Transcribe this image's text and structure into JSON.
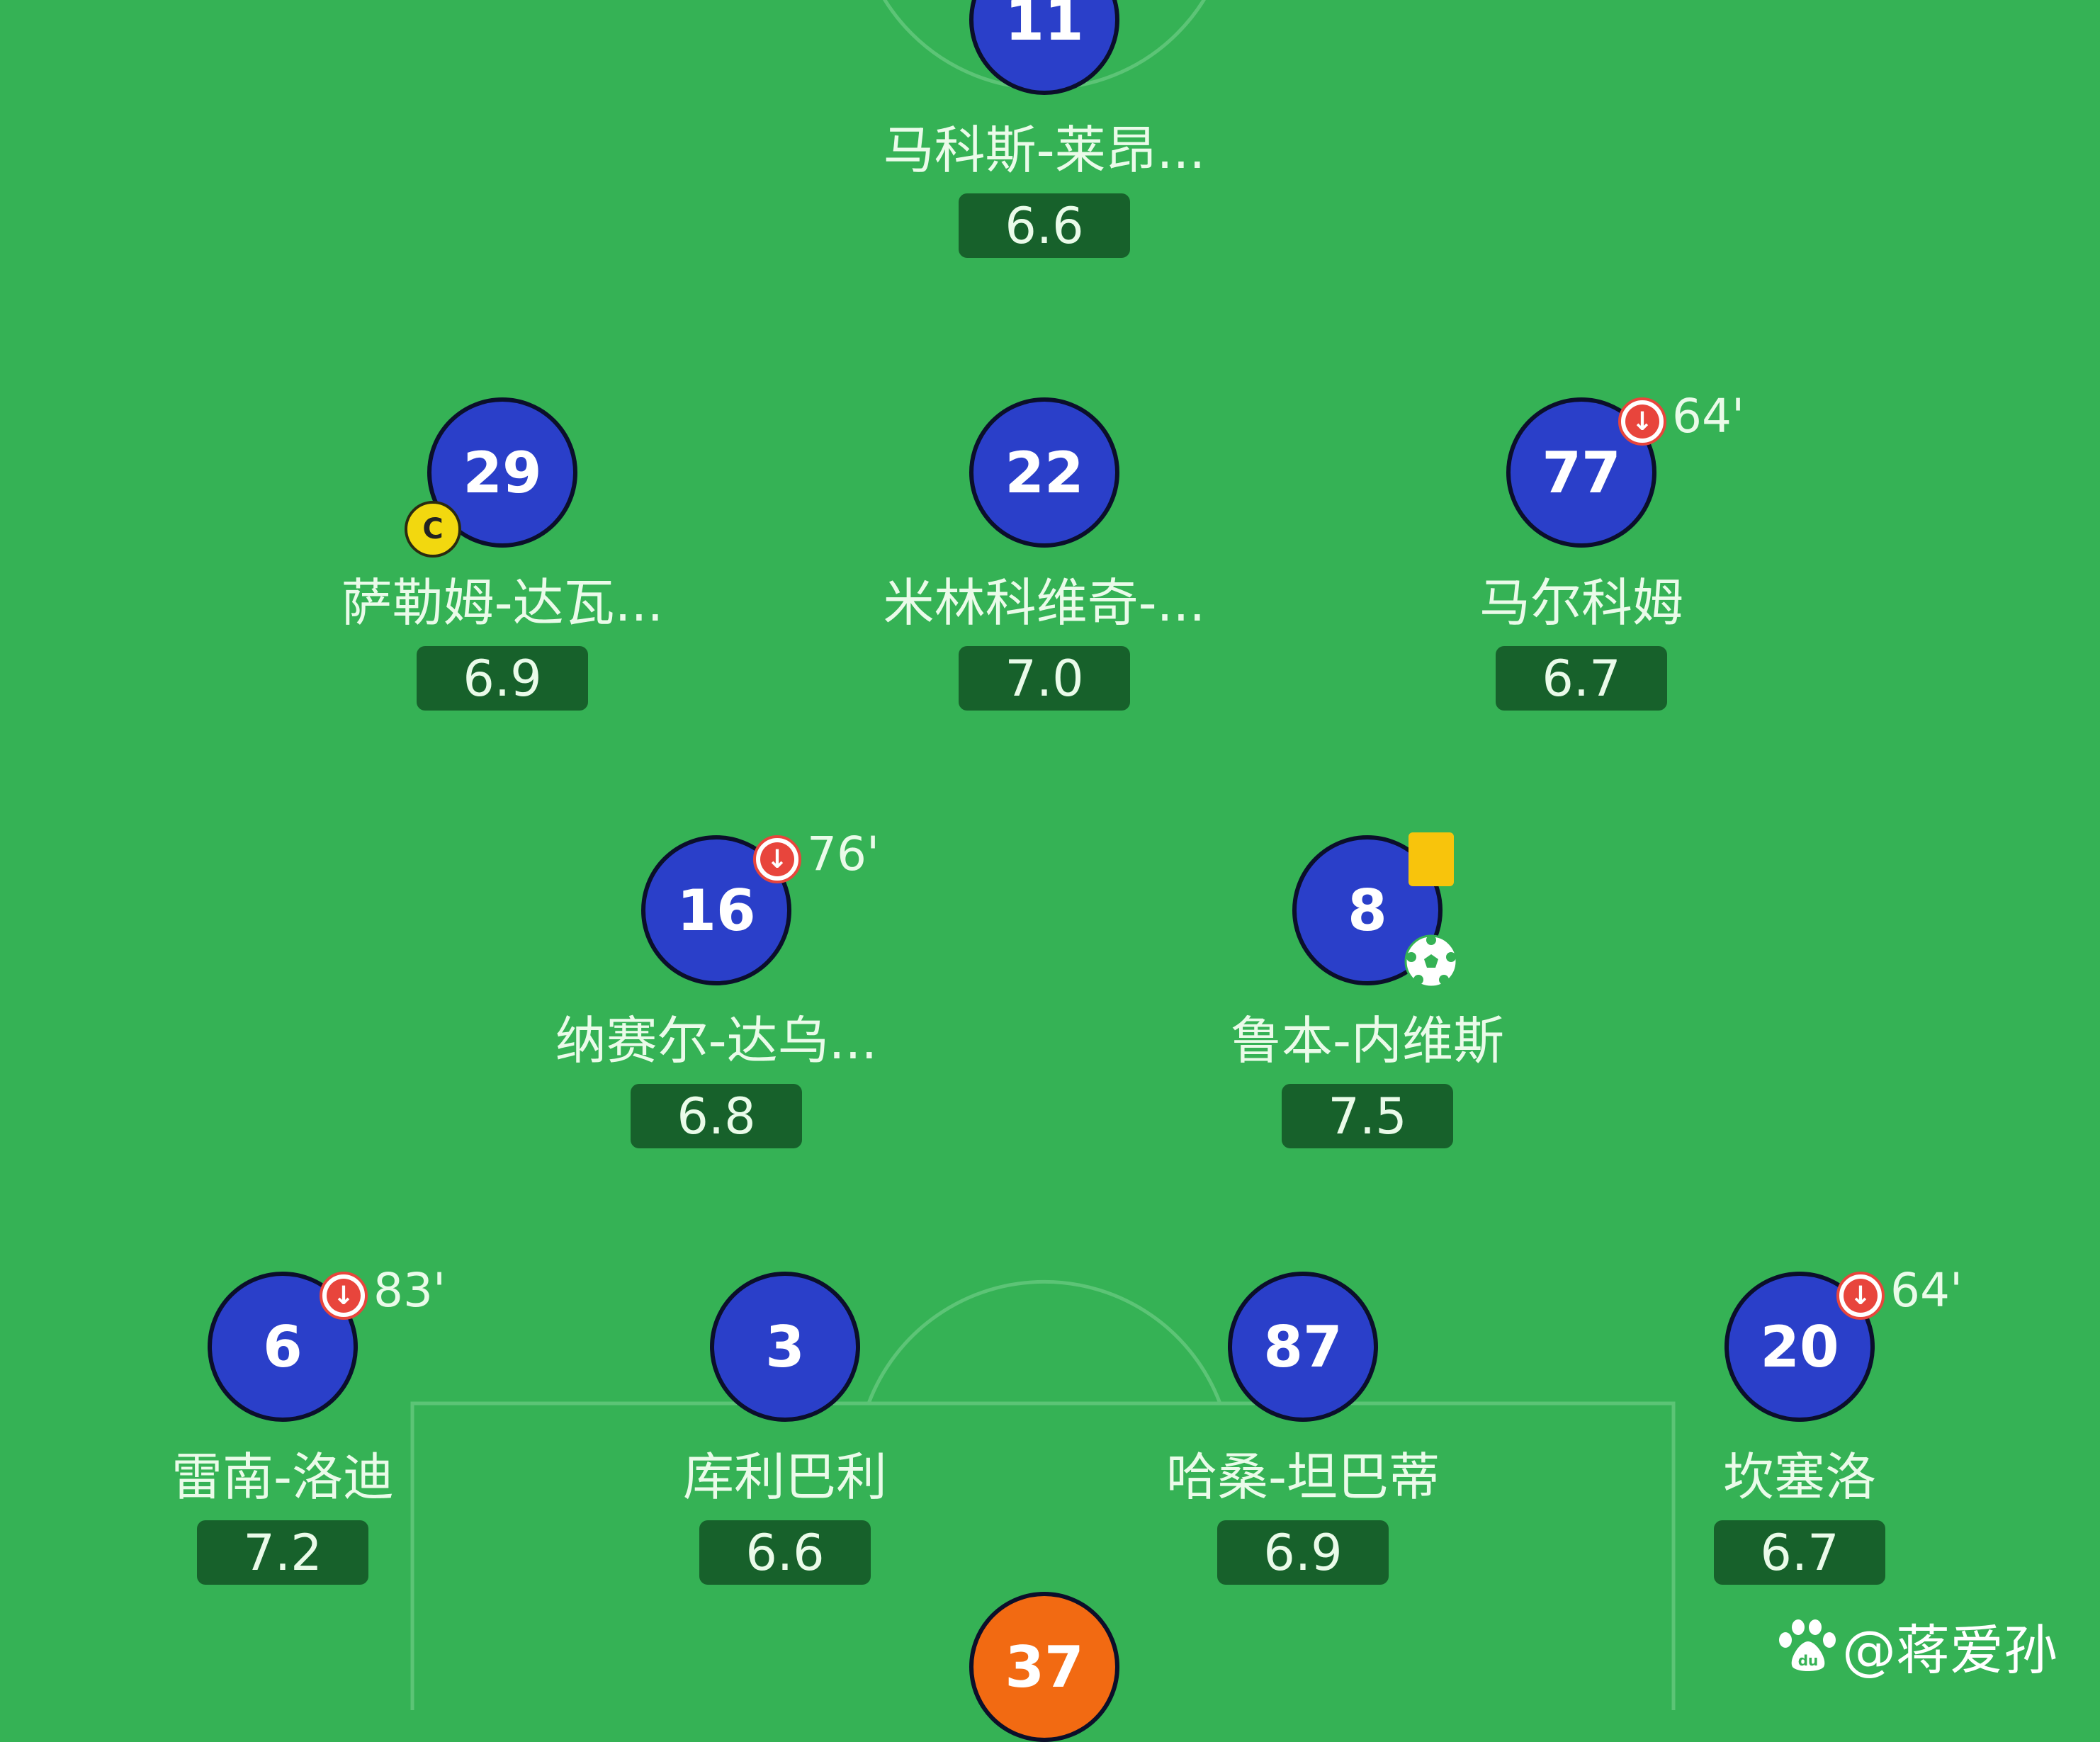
{
  "colors": {
    "pitch": "#35b255",
    "player_disc": "#2a3fc9",
    "goalkeeper_disc": "#f26a12",
    "rating_bg": "#17612b",
    "sub_icon": "#e8453c",
    "yellow_card": "#f8c40c"
  },
  "players": [
    {
      "number": "11",
      "name": "马科斯-莱昂...",
      "rating": "6.6"
    },
    {
      "number": "29",
      "name": "萨勒姆-达瓦...",
      "rating": "6.9",
      "captain": "C"
    },
    {
      "number": "22",
      "name": "米林科维奇-...",
      "rating": "7.0"
    },
    {
      "number": "77",
      "name": "马尔科姆",
      "rating": "6.7",
      "sub_off": "64'"
    },
    {
      "number": "16",
      "name": "纳赛尔-达乌...",
      "rating": "6.8",
      "sub_off": "76'"
    },
    {
      "number": "8",
      "name": "鲁本-内维斯",
      "rating": "7.5",
      "yellow_card": true,
      "goal": true
    },
    {
      "number": "6",
      "name": "雷南-洛迪",
      "rating": "7.2",
      "sub_off": "83'"
    },
    {
      "number": "3",
      "name": "库利巴利",
      "rating": "6.6"
    },
    {
      "number": "87",
      "name": "哈桑-坦巴蒂",
      "rating": "6.9"
    },
    {
      "number": "20",
      "name": "坎塞洛",
      "rating": "6.7",
      "sub_off": "64'"
    },
    {
      "number": "37",
      "goalkeeper": true
    }
  ],
  "watermark": {
    "icon": "baidu-paw-icon",
    "text": "@蒋爱孙"
  }
}
